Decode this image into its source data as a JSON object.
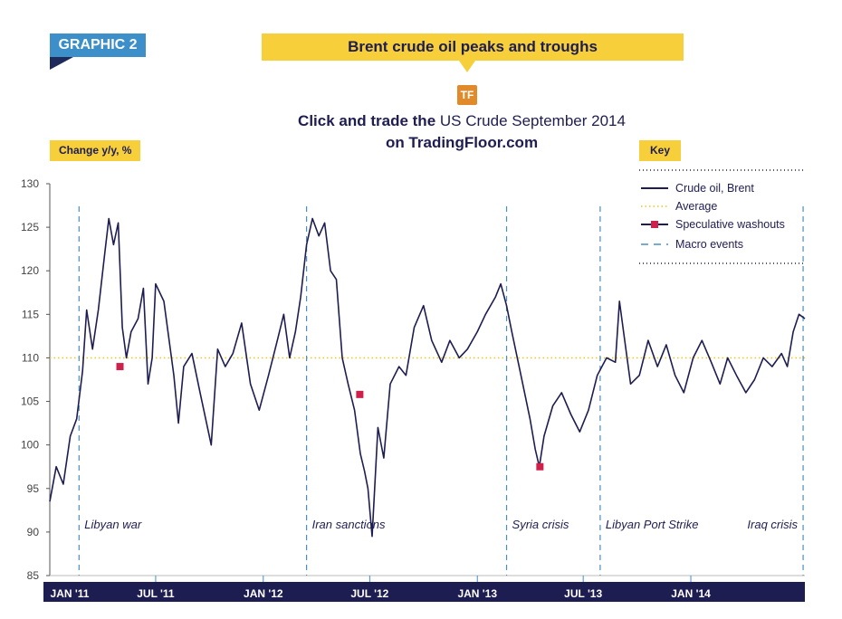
{
  "header": {
    "graphic_label": "GRAPHIC 2",
    "title": "Brent crude oil peaks and troughs",
    "badge": "TF",
    "cta_line1_bold": "Click and trade the",
    "cta_line1_rest": "US Crude September 2014",
    "cta_line2": "on TradingFloor.com"
  },
  "colors": {
    "line": "#1e1d52",
    "average": "#f0c419",
    "washout": "#d01f4a",
    "events": "#4a8fbf",
    "axis_band": "#1e1d52",
    "accent_yellow": "#f6cf3a",
    "accent_blue": "#3c8fc8"
  },
  "chart_data": {
    "type": "line",
    "ylabel": "Change y/y, %",
    "ylim": [
      85,
      130
    ],
    "yticks": [
      "130",
      "125",
      "120",
      "115",
      "110",
      "105",
      "100",
      "95",
      "90",
      "85"
    ],
    "xticks": [
      "JAN '11",
      "JUL '11",
      "JAN '12",
      "JUL '12",
      "JAN '13",
      "JUL '13",
      "JAN '14"
    ],
    "xlim": [
      "2011-01-01",
      "2014-07-15"
    ],
    "grid": false,
    "legend_title": "Key",
    "legend_position": "top-right",
    "legend": [
      {
        "label": "Crude oil, Brent",
        "kind": "line"
      },
      {
        "label": "Average",
        "kind": "dotted"
      },
      {
        "label": "Speculative washouts",
        "kind": "marker"
      },
      {
        "label": "Macro events",
        "kind": "dashed"
      }
    ],
    "average": 110,
    "series": [
      {
        "name": "Crude oil, Brent",
        "x": [
          "2011-01-01",
          "2011-01-12",
          "2011-01-24",
          "2011-02-05",
          "2011-02-16",
          "2011-02-26",
          "2011-03-05",
          "2011-03-15",
          "2011-03-25",
          "2011-04-05",
          "2011-04-12",
          "2011-04-20",
          "2011-04-28",
          "2011-05-05",
          "2011-05-12",
          "2011-05-20",
          "2011-06-01",
          "2011-06-10",
          "2011-06-18",
          "2011-06-25",
          "2011-07-01",
          "2011-07-15",
          "2011-08-01",
          "2011-08-09",
          "2011-08-18",
          "2011-09-01",
          "2011-09-15",
          "2011-10-04",
          "2011-10-15",
          "2011-10-28",
          "2011-11-10",
          "2011-11-25",
          "2011-12-10",
          "2011-12-25",
          "2012-01-10",
          "2012-01-25",
          "2012-02-05",
          "2012-02-15",
          "2012-02-25",
          "2012-03-05",
          "2012-03-15",
          "2012-03-25",
          "2012-04-05",
          "2012-04-15",
          "2012-04-25",
          "2012-05-05",
          "2012-05-15",
          "2012-05-25",
          "2012-06-05",
          "2012-06-15",
          "2012-06-22",
          "2012-06-28",
          "2012-07-05",
          "2012-07-15",
          "2012-07-25",
          "2012-08-05",
          "2012-08-20",
          "2012-09-01",
          "2012-09-15",
          "2012-10-01",
          "2012-10-15",
          "2012-11-01",
          "2012-11-15",
          "2012-12-01",
          "2012-12-15",
          "2013-01-01",
          "2013-01-15",
          "2013-02-01",
          "2013-02-10",
          "2013-02-20",
          "2013-03-01",
          "2013-03-15",
          "2013-04-01",
          "2013-04-10",
          "2013-04-17",
          "2013-04-25",
          "2013-05-10",
          "2013-05-25",
          "2013-06-10",
          "2013-06-25",
          "2013-07-10",
          "2013-07-25",
          "2013-08-10",
          "2013-08-25",
          "2013-09-01",
          "2013-09-10",
          "2013-09-20",
          "2013-10-05",
          "2013-10-20",
          "2013-11-05",
          "2013-11-20",
          "2013-12-05",
          "2013-12-20",
          "2014-01-05",
          "2014-01-20",
          "2014-02-05",
          "2014-02-20",
          "2014-03-05",
          "2014-03-20",
          "2014-04-05",
          "2014-04-20",
          "2014-05-05",
          "2014-05-20",
          "2014-06-05",
          "2014-06-15",
          "2014-06-25",
          "2014-07-05",
          "2014-07-15"
        ],
        "values": [
          93.5,
          97.5,
          95.5,
          101,
          103,
          108.5,
          115.5,
          111,
          115.5,
          122,
          126,
          123,
          125.5,
          113.5,
          110,
          113,
          114.5,
          118,
          107,
          110,
          118.5,
          116.5,
          108,
          102.5,
          109,
          110.5,
          106,
          100,
          111,
          109,
          110.5,
          114,
          107,
          104,
          108,
          112,
          115,
          110,
          113,
          117,
          123,
          126,
          124,
          125.5,
          120,
          119,
          110,
          107,
          104,
          99,
          97,
          95,
          89.5,
          102,
          98.5,
          107,
          109,
          108,
          113.5,
          116,
          112,
          109.5,
          112,
          110,
          111,
          113,
          115,
          117,
          118.5,
          116,
          113,
          108.5,
          103,
          99.5,
          97.5,
          101,
          104.5,
          106,
          103.5,
          101.5,
          104,
          108,
          110,
          109.5,
          116.5,
          112,
          107,
          108,
          112,
          109,
          111.5,
          108,
          106,
          110,
          112,
          109.5,
          107,
          110,
          108,
          106,
          107.5,
          110,
          109,
          110.5,
          109,
          113,
          115,
          114.5
        ]
      }
    ],
    "washouts": [
      {
        "x": "2011-05-01",
        "y": 109
      },
      {
        "x": "2012-06-14",
        "y": 105.8
      },
      {
        "x": "2013-04-18",
        "y": 97.5
      }
    ],
    "events": [
      {
        "x": "2011-02-20",
        "label": "Libyan war"
      },
      {
        "x": "2012-03-15",
        "label": "Iran sanctions"
      },
      {
        "x": "2013-02-20",
        "label": "Syria crisis"
      },
      {
        "x": "2013-07-30",
        "label": "Libyan Port Strike"
      },
      {
        "x": "2014-07-12",
        "label": "Iraq crisis"
      }
    ]
  }
}
